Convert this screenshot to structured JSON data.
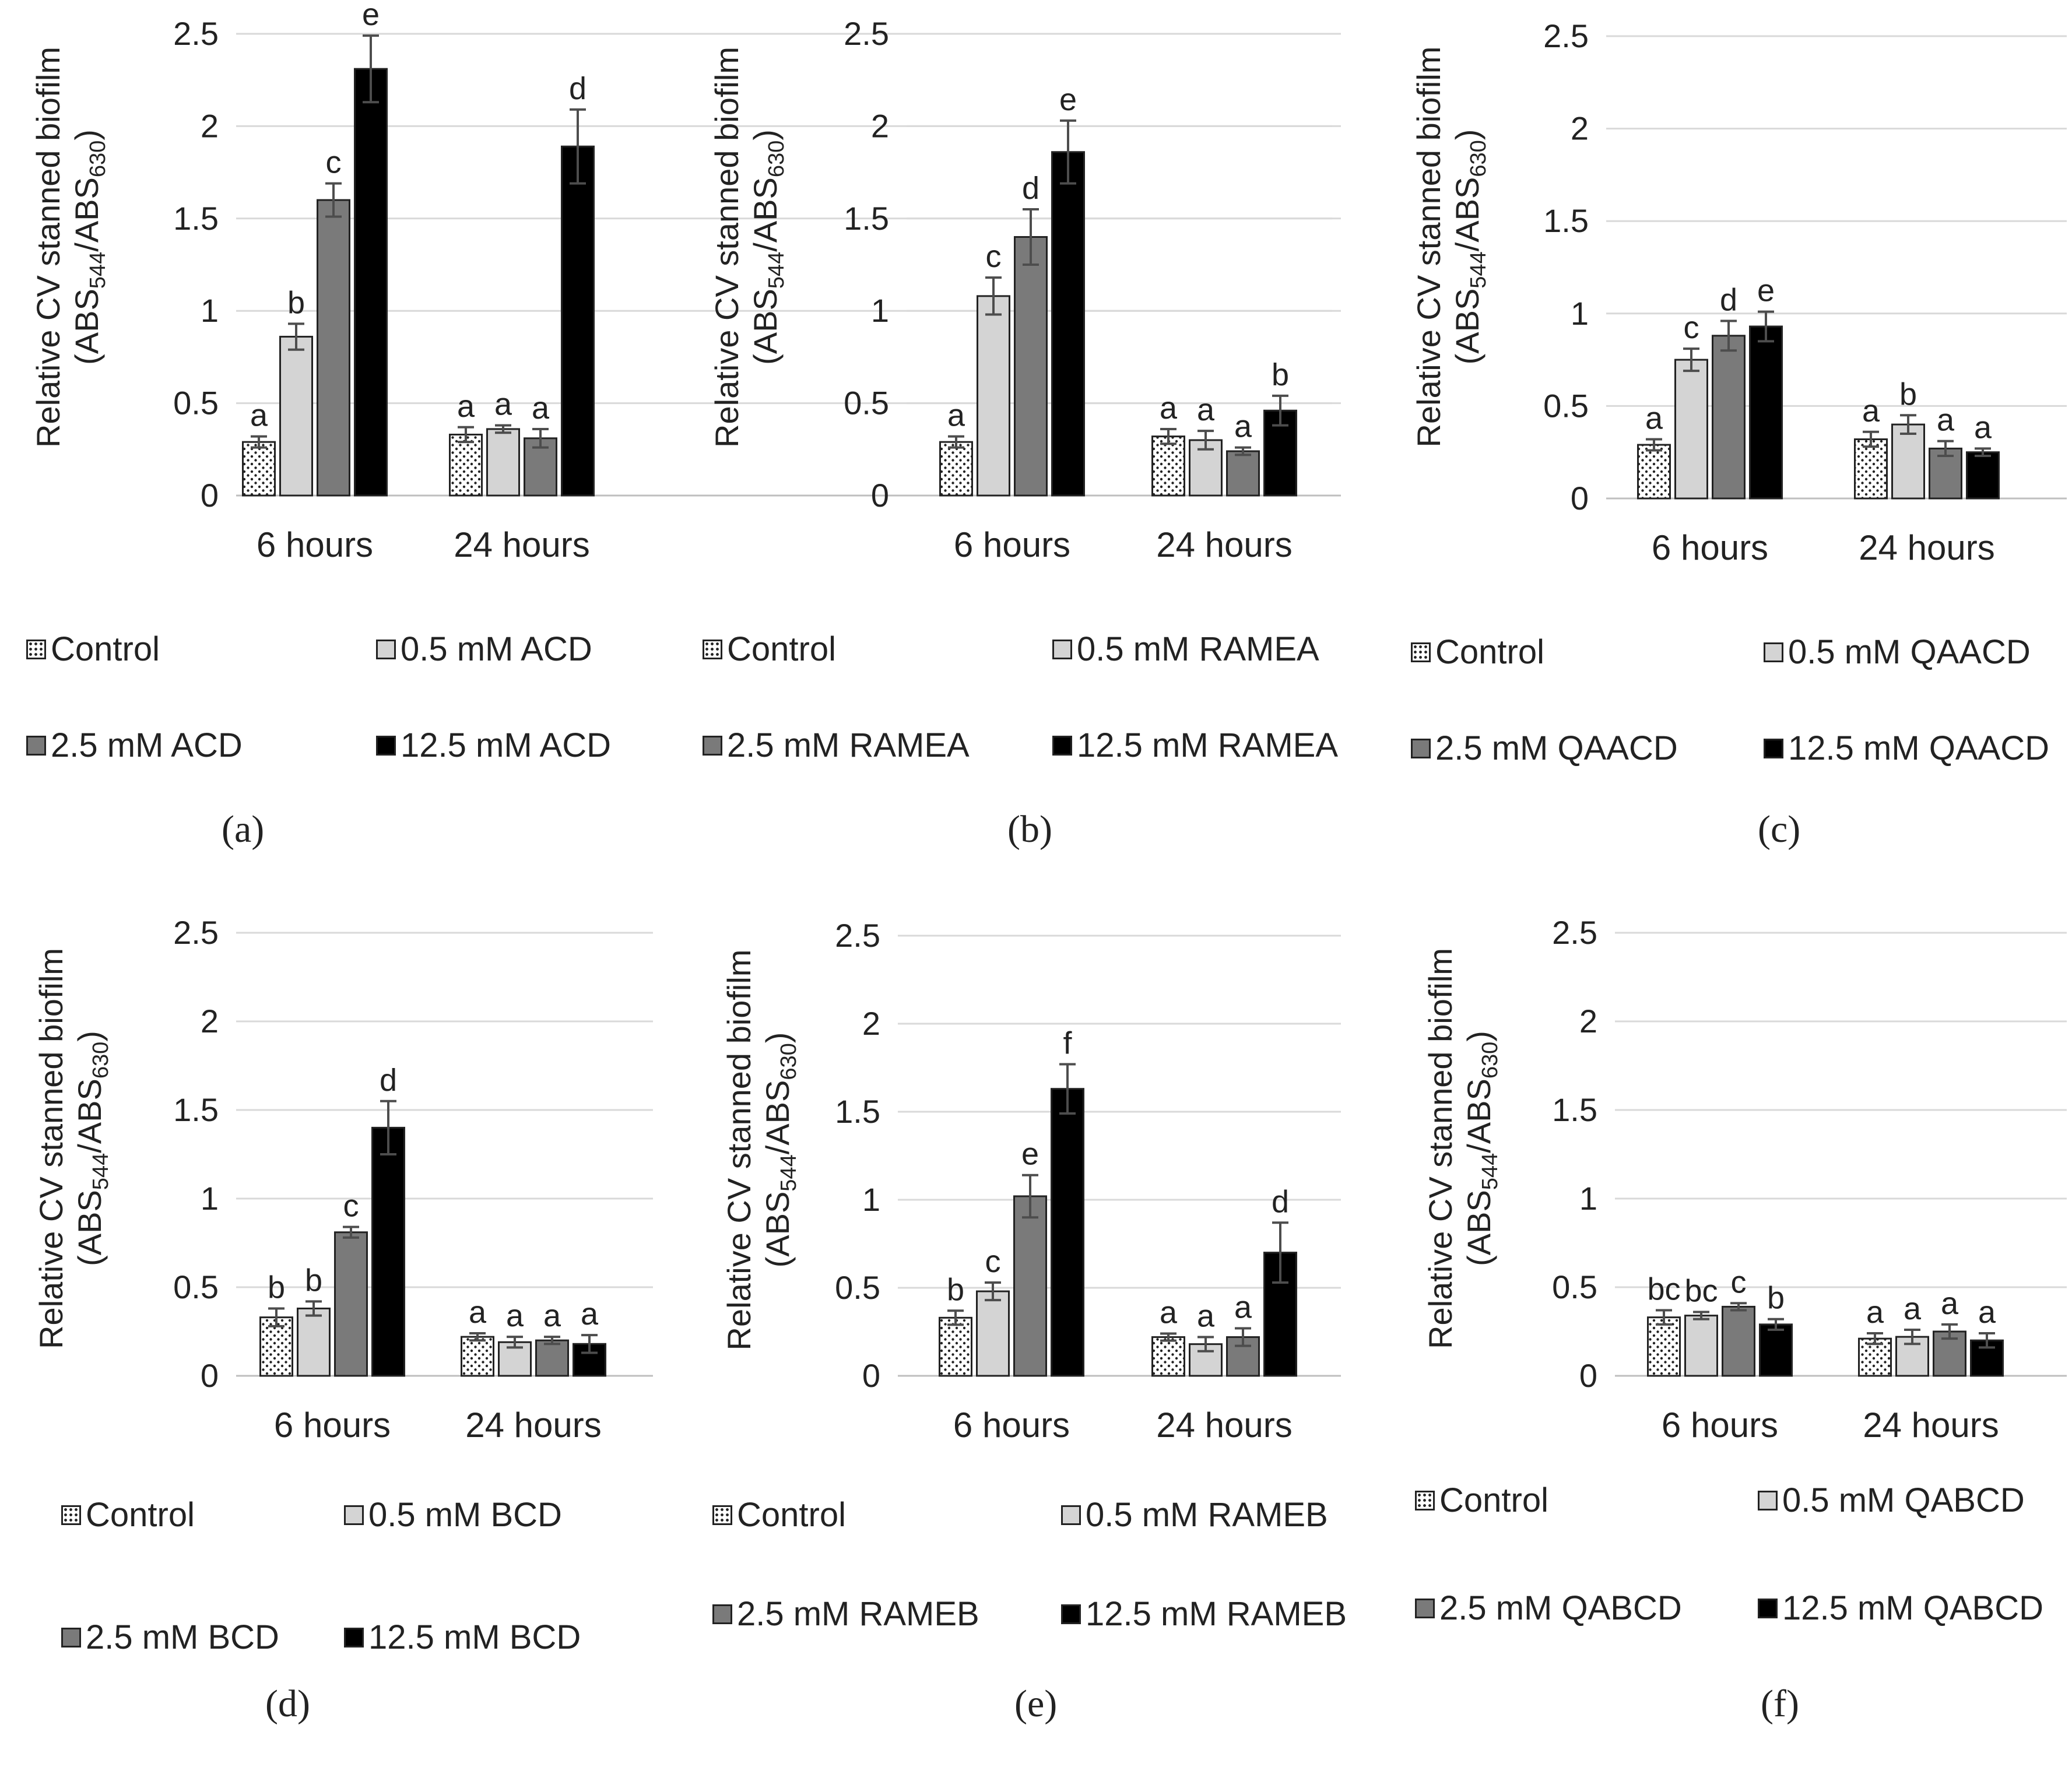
{
  "figure": {
    "y_axis_label_line1": "Relative CV stanned biofilm",
    "y_axis_label_line2_parts": [
      "(ABS",
      "544",
      "/ABS",
      "630",
      ")"
    ]
  },
  "colors": {
    "control_fill": "#ffffff",
    "light_fill": "#d4d4d4",
    "mid_fill": "#7a7a7a",
    "dark_fill": "#000000",
    "gridline": "#d9d9d9",
    "errorbar": "#4d4d4d",
    "text": "#222222"
  },
  "chart_data": [
    {
      "panel": "(a)",
      "type": "bar",
      "categories": [
        "6 hours",
        "24 hours"
      ],
      "ylim": [
        0,
        2.5
      ],
      "yticks": [
        "0",
        "0.5",
        "1",
        "1.5",
        "2",
        "2.5"
      ],
      "ylabel": "Relative CV stanned biofilm (ABS544/ABS630)",
      "series": [
        {
          "name": "Control",
          "values": [
            0.29,
            0.33
          ],
          "errors": [
            0.03,
            0.04
          ],
          "letters": [
            "a",
            "a"
          ]
        },
        {
          "name": "0.5 mM ACD",
          "values": [
            0.86,
            0.36
          ],
          "errors": [
            0.07,
            0.02
          ],
          "letters": [
            "b",
            "a"
          ]
        },
        {
          "name": "2.5 mM ACD",
          "values": [
            1.6,
            0.31
          ],
          "errors": [
            0.09,
            0.05
          ],
          "letters": [
            "c",
            "a"
          ]
        },
        {
          "name": "12.5 mM ACD",
          "values": [
            2.31,
            1.89
          ],
          "errors": [
            0.18,
            0.2
          ],
          "letters": [
            "e",
            "d"
          ]
        }
      ]
    },
    {
      "panel": "(b)",
      "type": "bar",
      "categories": [
        "6 hours",
        "24 hours"
      ],
      "ylim": [
        0,
        2.5
      ],
      "yticks": [
        "0",
        "0.5",
        "1",
        "1.5",
        "2",
        "2.5"
      ],
      "ylabel": "Relative CV stanned biofilm (ABS544/ABS630)",
      "series": [
        {
          "name": "Control",
          "values": [
            0.29,
            0.32
          ],
          "errors": [
            0.03,
            0.04
          ],
          "letters": [
            "a",
            "a"
          ]
        },
        {
          "name": "0.5 mM RAMEA",
          "values": [
            1.08,
            0.3
          ],
          "errors": [
            0.1,
            0.05
          ],
          "letters": [
            "c",
            "a"
          ]
        },
        {
          "name": "2.5 mM RAMEA",
          "values": [
            1.4,
            0.24
          ],
          "errors": [
            0.15,
            0.02
          ],
          "letters": [
            "d",
            "a"
          ]
        },
        {
          "name": "12.5 mM RAMEA",
          "values": [
            1.86,
            0.46
          ],
          "errors": [
            0.17,
            0.08
          ],
          "letters": [
            "e",
            "b"
          ]
        }
      ]
    },
    {
      "panel": "(c)",
      "type": "bar",
      "categories": [
        "6 hours",
        "24 hours"
      ],
      "ylim": [
        0,
        2.5
      ],
      "yticks": [
        "0",
        "0.5",
        "1",
        "1.5",
        "2",
        "2.5"
      ],
      "ylabel": "Relative CV stanned biofilm (ABS544/ABS630)",
      "series": [
        {
          "name": "Control",
          "values": [
            0.29,
            0.32
          ],
          "errors": [
            0.03,
            0.04
          ],
          "letters": [
            "a",
            "a"
          ]
        },
        {
          "name": "0.5 mM QAACD",
          "values": [
            0.75,
            0.4
          ],
          "errors": [
            0.06,
            0.05
          ],
          "letters": [
            "c",
            "b"
          ]
        },
        {
          "name": "2.5 mM QAACD",
          "values": [
            0.88,
            0.27
          ],
          "errors": [
            0.08,
            0.04
          ],
          "letters": [
            "d",
            "a"
          ]
        },
        {
          "name": "12.5 mM QAACD",
          "values": [
            0.93,
            0.25
          ],
          "errors": [
            0.08,
            0.02
          ],
          "letters": [
            "e",
            "a"
          ]
        }
      ]
    },
    {
      "panel": "(d)",
      "type": "bar",
      "categories": [
        "6 hours",
        "24 hours"
      ],
      "ylim": [
        0,
        2.5
      ],
      "yticks": [
        "0",
        "0.5",
        "1",
        "1.5",
        "2",
        "2.5"
      ],
      "ylabel": "Relative CV stanned biofilm (ABS544/ABS630)",
      "series": [
        {
          "name": "Control",
          "values": [
            0.33,
            0.22
          ],
          "errors": [
            0.05,
            0.02
          ],
          "letters": [
            "b",
            "a"
          ]
        },
        {
          "name": "0.5 mM BCD",
          "values": [
            0.38,
            0.19
          ],
          "errors": [
            0.04,
            0.03
          ],
          "letters": [
            "b",
            "a"
          ]
        },
        {
          "name": "2.5 mM BCD",
          "values": [
            0.81,
            0.2
          ],
          "errors": [
            0.03,
            0.02
          ],
          "letters": [
            "c",
            "a"
          ]
        },
        {
          "name": "12.5 mM BCD",
          "values": [
            1.4,
            0.18
          ],
          "errors": [
            0.15,
            0.05
          ],
          "letters": [
            "d",
            "a"
          ]
        }
      ]
    },
    {
      "panel": "(e)",
      "type": "bar",
      "categories": [
        "6 hours",
        "24 hours"
      ],
      "ylim": [
        0,
        2.5
      ],
      "yticks": [
        "0",
        "0.5",
        "1",
        "1.5",
        "2",
        "2.5"
      ],
      "ylabel": "Relative CV stanned biofilm (ABS544/ABS630)",
      "series": [
        {
          "name": "Control",
          "values": [
            0.33,
            0.22
          ],
          "errors": [
            0.04,
            0.02
          ],
          "letters": [
            "b",
            "a"
          ]
        },
        {
          "name": "0.5 mM RAMEB",
          "values": [
            0.48,
            0.18
          ],
          "errors": [
            0.05,
            0.04
          ],
          "letters": [
            "c",
            "a"
          ]
        },
        {
          "name": "2.5 mM RAMEB",
          "values": [
            1.02,
            0.22
          ],
          "errors": [
            0.12,
            0.05
          ],
          "letters": [
            "e",
            "a"
          ]
        },
        {
          "name": "12.5 mM RAMEB",
          "values": [
            1.63,
            0.7
          ],
          "errors": [
            0.14,
            0.17
          ],
          "letters": [
            "f",
            "d"
          ]
        }
      ]
    },
    {
      "panel": "(f)",
      "type": "bar",
      "categories": [
        "6 hours",
        "24 hours"
      ],
      "ylim": [
        0,
        2.5
      ],
      "yticks": [
        "0",
        "0.5",
        "1",
        "1.5",
        "2",
        "2.5"
      ],
      "ylabel": "Relative CV stanned biofilm (ABS544/ABS630)",
      "series": [
        {
          "name": "Control",
          "values": [
            0.33,
            0.21
          ],
          "errors": [
            0.04,
            0.03
          ],
          "letters": [
            "bc",
            "a"
          ]
        },
        {
          "name": "0.5 mM QABCD",
          "values": [
            0.34,
            0.22
          ],
          "errors": [
            0.02,
            0.04
          ],
          "letters": [
            "bc",
            "a"
          ]
        },
        {
          "name": "2.5 mM QABCD",
          "values": [
            0.39,
            0.25
          ],
          "errors": [
            0.02,
            0.04
          ],
          "letters": [
            "c",
            "a"
          ]
        },
        {
          "name": "12.5 mM QABCD",
          "values": [
            0.29,
            0.2
          ],
          "errors": [
            0.03,
            0.04
          ],
          "letters": [
            "b",
            "a"
          ]
        }
      ]
    }
  ]
}
